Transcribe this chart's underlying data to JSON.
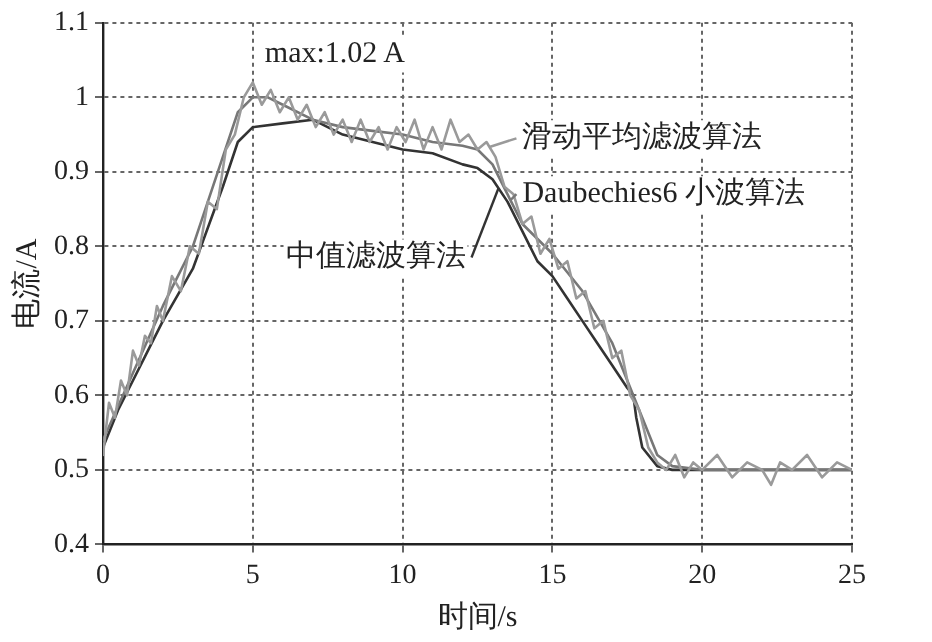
{
  "chart_data": {
    "type": "line",
    "xlabel": "时间/s",
    "ylabel": "电流/A",
    "xlim": [
      0,
      25
    ],
    "xticks": [
      0,
      5,
      10,
      15,
      20,
      25
    ],
    "ylim": [
      0.4,
      1.1
    ],
    "yticks": [
      0.4,
      0.5,
      0.6,
      0.7,
      0.8,
      0.9,
      1.0,
      1.1
    ],
    "grid": true,
    "legend": "right",
    "marker": "none",
    "line_style": "solid",
    "annotations": [
      {
        "text": "max:1.02 A",
        "x": 5,
        "y": 1.02
      }
    ],
    "series": [
      {
        "name": "滑动平均滤波算法",
        "color": "#9a9a9a",
        "x": [
          0,
          0.2,
          0.4,
          0.6,
          0.8,
          1,
          1.2,
          1.4,
          1.6,
          1.8,
          2,
          2.3,
          2.6,
          2.9,
          3.2,
          3.5,
          3.8,
          4.1,
          4.4,
          4.7,
          5,
          5.3,
          5.6,
          5.9,
          6.2,
          6.5,
          6.8,
          7.1,
          7.4,
          7.7,
          8,
          8.3,
          8.6,
          8.9,
          9.2,
          9.5,
          9.8,
          10.1,
          10.4,
          10.7,
          11,
          11.3,
          11.6,
          11.9,
          12.2,
          12.5,
          12.8,
          13.1,
          13.4,
          13.7,
          14,
          14.3,
          14.6,
          14.9,
          15.2,
          15.5,
          15.8,
          16.1,
          16.4,
          16.7,
          17,
          17.3,
          17.6,
          17.9,
          18.2,
          18.5,
          18.8,
          19.1,
          19.4,
          19.7,
          20,
          20.5,
          21,
          21.5,
          22,
          22.3,
          22.6,
          23,
          23.5,
          24,
          24.5,
          25
        ],
        "values": [
          0.52,
          0.59,
          0.57,
          0.62,
          0.6,
          0.66,
          0.64,
          0.68,
          0.67,
          0.72,
          0.7,
          0.76,
          0.74,
          0.8,
          0.79,
          0.86,
          0.85,
          0.93,
          0.95,
          1.0,
          1.02,
          0.99,
          1.01,
          0.98,
          1.0,
          0.97,
          0.99,
          0.96,
          0.98,
          0.95,
          0.97,
          0.94,
          0.97,
          0.94,
          0.96,
          0.93,
          0.96,
          0.94,
          0.97,
          0.93,
          0.96,
          0.93,
          0.97,
          0.94,
          0.95,
          0.93,
          0.94,
          0.92,
          0.88,
          0.87,
          0.83,
          0.84,
          0.79,
          0.81,
          0.77,
          0.78,
          0.73,
          0.74,
          0.69,
          0.7,
          0.65,
          0.66,
          0.6,
          0.58,
          0.53,
          0.51,
          0.5,
          0.52,
          0.49,
          0.51,
          0.5,
          0.52,
          0.49,
          0.51,
          0.5,
          0.48,
          0.51,
          0.5,
          0.52,
          0.49,
          0.51,
          0.5
        ]
      },
      {
        "name": "Daubechies6 小波算法",
        "color": "#777777",
        "x": [
          0,
          1,
          2,
          3,
          4,
          4.5,
          5,
          5.5,
          6,
          7,
          8,
          9,
          10,
          11,
          12,
          12.5,
          13,
          13.5,
          14,
          15,
          16,
          17,
          17.5,
          18,
          18.5,
          19,
          20,
          22,
          25
        ],
        "values": [
          0.54,
          0.63,
          0.72,
          0.8,
          0.92,
          0.98,
          1.0,
          1.0,
          0.99,
          0.97,
          0.96,
          0.955,
          0.95,
          0.94,
          0.935,
          0.93,
          0.91,
          0.87,
          0.83,
          0.79,
          0.74,
          0.67,
          0.62,
          0.57,
          0.52,
          0.505,
          0.5,
          0.5,
          0.5
        ]
      },
      {
        "name": "中值滤波算法",
        "color": "#333333",
        "x": [
          0,
          0.5,
          1,
          1.5,
          2,
          3,
          4,
          4.5,
          5,
          6,
          7,
          8,
          9,
          10,
          11,
          12,
          12.5,
          13,
          13.5,
          14,
          14.5,
          15,
          15.5,
          16,
          16.5,
          17,
          17.5,
          17.7,
          17.8,
          18,
          18.5,
          19,
          20,
          25
        ],
        "values": [
          0.53,
          0.58,
          0.62,
          0.66,
          0.7,
          0.77,
          0.88,
          0.94,
          0.96,
          0.965,
          0.97,
          0.95,
          0.94,
          0.93,
          0.925,
          0.91,
          0.905,
          0.89,
          0.86,
          0.82,
          0.78,
          0.76,
          0.73,
          0.7,
          0.67,
          0.64,
          0.61,
          0.6,
          0.57,
          0.53,
          0.505,
          0.5,
          0.5,
          0.5
        ]
      }
    ]
  }
}
